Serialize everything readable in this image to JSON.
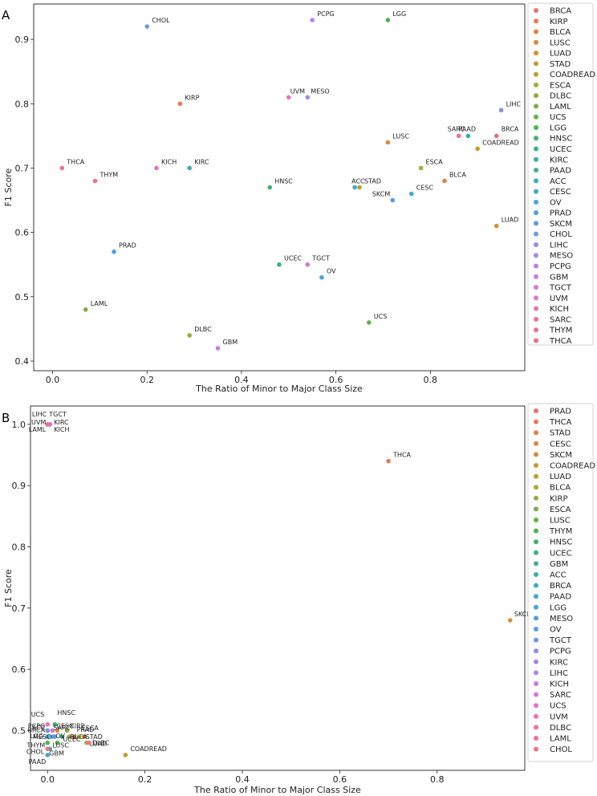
{
  "chart_data": [
    {
      "panel": "A",
      "type": "scatter",
      "xlabel": "The Ratio of Minor to Major Class Size",
      "ylabel": "F1 Score",
      "xlim": [
        -0.04,
        1.0
      ],
      "ylim": [
        0.385,
        0.955
      ],
      "xticks": [
        0.0,
        0.2,
        0.4,
        0.6,
        0.8
      ],
      "xtick_labels": [
        "0.0",
        "0.2",
        "0.4",
        "0.6",
        "0.8"
      ],
      "yticks": [
        0.4,
        0.5,
        0.6,
        0.7,
        0.8,
        0.9
      ],
      "ytick_labels": [
        "0.4",
        "0.5",
        "0.6",
        "0.7",
        "0.8",
        "0.9"
      ],
      "grid": false,
      "legend_position": "outside-right",
      "legend": [
        "BRCA",
        "KIRP",
        "BLCA",
        "LUSC",
        "LUAD",
        "STAD",
        "COADREAD",
        "ESCA",
        "DLBC",
        "LAML",
        "UCS",
        "LGG",
        "HNSC",
        "UCEC",
        "KIRC",
        "PAAD",
        "ACC",
        "CESC",
        "OV",
        "PRAD",
        "SKCM",
        "CHOL",
        "LIHC",
        "MESO",
        "PCPG",
        "GBM",
        "TGCT",
        "UVM",
        "KICH",
        "SARC",
        "THYM",
        "THCA"
      ],
      "points": [
        {
          "name": "BRCA",
          "x": 0.94,
          "y": 0.75
        },
        {
          "name": "KIRP",
          "x": 0.27,
          "y": 0.8
        },
        {
          "name": "BLCA",
          "x": 0.83,
          "y": 0.68
        },
        {
          "name": "LUSC",
          "x": 0.71,
          "y": 0.74
        },
        {
          "name": "LUAD",
          "x": 0.94,
          "y": 0.61
        },
        {
          "name": "STAD",
          "x": 0.65,
          "y": 0.67
        },
        {
          "name": "COADREAD",
          "x": 0.9,
          "y": 0.73
        },
        {
          "name": "ESCA",
          "x": 0.78,
          "y": 0.7
        },
        {
          "name": "DLBC",
          "x": 0.29,
          "y": 0.44
        },
        {
          "name": "LAML",
          "x": 0.07,
          "y": 0.48
        },
        {
          "name": "UCS",
          "x": 0.67,
          "y": 0.46
        },
        {
          "name": "LGG",
          "x": 0.71,
          "y": 0.93
        },
        {
          "name": "HNSC",
          "x": 0.46,
          "y": 0.67
        },
        {
          "name": "UCEC",
          "x": 0.48,
          "y": 0.55
        },
        {
          "name": "KIRC",
          "x": 0.29,
          "y": 0.7
        },
        {
          "name": "PAAD",
          "x": 0.88,
          "y": 0.75
        },
        {
          "name": "ACC",
          "x": 0.64,
          "y": 0.67
        },
        {
          "name": "CESC",
          "x": 0.76,
          "y": 0.66
        },
        {
          "name": "OV",
          "x": 0.57,
          "y": 0.53
        },
        {
          "name": "PRAD",
          "x": 0.13,
          "y": 0.57
        },
        {
          "name": "SKCM",
          "x": 0.72,
          "y": 0.65
        },
        {
          "name": "CHOL",
          "x": 0.2,
          "y": 0.92
        },
        {
          "name": "LIHC",
          "x": 0.95,
          "y": 0.79
        },
        {
          "name": "MESO",
          "x": 0.54,
          "y": 0.81
        },
        {
          "name": "PCPG",
          "x": 0.55,
          "y": 0.93
        },
        {
          "name": "GBM",
          "x": 0.35,
          "y": 0.42
        },
        {
          "name": "TGCT",
          "x": 0.54,
          "y": 0.55
        },
        {
          "name": "UVM",
          "x": 0.5,
          "y": 0.81
        },
        {
          "name": "KICH",
          "x": 0.22,
          "y": 0.7
        },
        {
          "name": "SARC",
          "x": 0.86,
          "y": 0.75
        },
        {
          "name": "THYM",
          "x": 0.09,
          "y": 0.68
        },
        {
          "name": "THCA",
          "x": 0.02,
          "y": 0.7
        }
      ]
    },
    {
      "panel": "B",
      "type": "scatter",
      "xlabel": "The Ratio of Minor to Major Class Size",
      "ylabel": "F1 Score",
      "xlim": [
        -0.035,
        0.98
      ],
      "ylim": [
        0.435,
        1.03
      ],
      "xticks": [
        0.0,
        0.2,
        0.4,
        0.6,
        0.8
      ],
      "xtick_labels": [
        "0.0",
        "0.2",
        "0.4",
        "0.6",
        "0.8"
      ],
      "yticks": [
        0.5,
        0.6,
        0.7,
        0.8,
        0.9,
        1.0
      ],
      "ytick_labels": [
        "0.5",
        "0.6",
        "0.7",
        "0.8",
        "0.9",
        "1.0"
      ],
      "grid": false,
      "legend_position": "outside-right",
      "legend": [
        "PRAD",
        "THCA",
        "STAD",
        "CESC",
        "SKCM",
        "COADREAD",
        "LUAD",
        "BLCA",
        "KIRP",
        "ESCA",
        "LUSC",
        "THYM",
        "HNSC",
        "UCEC",
        "GBM",
        "ACC",
        "BRCA",
        "PAAD",
        "LGG",
        "MESO",
        "OV",
        "TGCT",
        "PCPG",
        "KIRC",
        "LIHC",
        "KICH",
        "SARC",
        "UCS",
        "UVM",
        "DLBC",
        "LAML",
        "CHOL"
      ],
      "points": [
        {
          "name": "PRAD",
          "x": 0.055,
          "y": 0.49
        },
        {
          "name": "THCA",
          "x": 0.7,
          "y": 0.94
        },
        {
          "name": "STAD",
          "x": 0.075,
          "y": 0.49
        },
        {
          "name": "CESC",
          "x": 0.02,
          "y": 0.5
        },
        {
          "name": "SKCM",
          "x": 0.95,
          "y": 0.68
        },
        {
          "name": "COADREAD",
          "x": 0.16,
          "y": 0.46
        },
        {
          "name": "LUAD",
          "x": 0.08,
          "y": 0.48
        },
        {
          "name": "BLCA",
          "x": 0.045,
          "y": 0.49
        },
        {
          "name": "KIRP",
          "x": 0.04,
          "y": 0.5
        },
        {
          "name": "ESCA",
          "x": 0.065,
          "y": 0.49
        },
        {
          "name": "LUSC",
          "x": 0.02,
          "y": 0.48
        },
        {
          "name": "THYM",
          "x": 0.0,
          "y": 0.48
        },
        {
          "name": "HNSC",
          "x": 0.015,
          "y": 0.51
        },
        {
          "name": "UCEC",
          "x": 0.03,
          "y": 0.49
        },
        {
          "name": "GBM",
          "x": 0.005,
          "y": 0.47
        },
        {
          "name": "ACC",
          "x": 0.0,
          "y": 0.5
        },
        {
          "name": "BRCA",
          "x": 0.0,
          "y": 0.5
        },
        {
          "name": "PAAD",
          "x": 0.0,
          "y": 0.46
        },
        {
          "name": "LGG",
          "x": 0.0,
          "y": 0.49
        },
        {
          "name": "MESO",
          "x": 0.01,
          "y": 0.49
        },
        {
          "name": "OV",
          "x": 0.015,
          "y": 0.49
        },
        {
          "name": "TGCT",
          "x": 0.005,
          "y": 1.0
        },
        {
          "name": "PCPG",
          "x": 0.0,
          "y": 0.5
        },
        {
          "name": "KIRC",
          "x": 0.005,
          "y": 1.0
        },
        {
          "name": "LIHC",
          "x": 0.0,
          "y": 1.0
        },
        {
          "name": "KICH",
          "x": 0.005,
          "y": 1.0
        },
        {
          "name": "SARC",
          "x": 0.01,
          "y": 0.5
        },
        {
          "name": "UCS",
          "x": 0.0,
          "y": 0.51
        },
        {
          "name": "UVM",
          "x": 0.0,
          "y": 1.0
        },
        {
          "name": "DLBC",
          "x": 0.085,
          "y": 0.48
        },
        {
          "name": "LAML",
          "x": 0.0,
          "y": 1.0
        },
        {
          "name": "CHOL",
          "x": 0.0,
          "y": 0.47
        }
      ]
    }
  ]
}
